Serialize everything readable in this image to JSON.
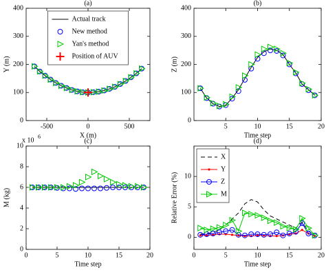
{
  "chart_data": [
    {
      "type": "line",
      "title": "(a)",
      "x_label": "X (m)",
      "y_label": "Y (m)",
      "x": [
        -650,
        -585,
        -520,
        -455,
        -390,
        -325,
        -260,
        -195,
        -130,
        -65,
        0,
        65,
        130,
        195,
        260,
        325,
        390,
        455,
        520,
        585,
        650
      ],
      "xlim": [
        -750,
        750
      ],
      "xticks": [
        -500,
        0,
        500
      ],
      "ylim": [
        0,
        400
      ],
      "yticks": [
        0,
        100,
        200,
        300,
        400
      ],
      "legend": "upper center",
      "series": [
        {
          "name": "Actual track",
          "color": "#000000",
          "line": "solid",
          "marker": "none",
          "values": [
            193,
            175,
            160,
            146,
            134,
            124,
            116,
            109,
            104,
            101,
            100,
            101,
            103,
            107,
            113,
            120,
            130,
            141,
            154,
            168,
            185
          ]
        },
        {
          "name": "New method",
          "color": "#0000ff",
          "line": "none",
          "marker": "circle",
          "values": [
            193,
            175,
            160,
            146,
            134,
            124,
            116,
            109,
            104,
            101,
            100,
            101,
            103,
            107,
            113,
            120,
            130,
            141,
            154,
            168,
            185
          ]
        },
        {
          "name": "Yan's method",
          "color": "#00cc00",
          "line": "none",
          "marker": "triangle",
          "values": [
            193,
            175,
            160,
            146,
            134,
            124,
            116,
            109,
            104,
            101,
            100,
            101,
            103,
            107,
            113,
            120,
            130,
            141,
            154,
            168,
            185
          ]
        },
        {
          "name": "Position of AUV",
          "color": "#ff0000",
          "line": "none",
          "marker": "plus",
          "values": [
            null,
            null,
            null,
            null,
            null,
            null,
            null,
            null,
            null,
            null,
            100,
            null,
            null,
            null,
            null,
            null,
            null,
            null,
            null,
            null,
            null
          ]
        }
      ]
    },
    {
      "type": "line",
      "title": "(b)",
      "x_label": "Time step",
      "y_label": "Z (m)",
      "x": [
        1,
        2,
        3,
        4,
        5,
        6,
        7,
        8,
        9,
        10,
        11,
        12,
        13,
        14,
        15,
        16,
        17,
        18,
        19
      ],
      "xlim": [
        0,
        20
      ],
      "xticks": [
        5,
        10,
        15,
        20
      ],
      "ylim": [
        0,
        400
      ],
      "yticks": [
        0,
        100,
        200,
        300,
        400
      ],
      "series": [
        {
          "name": "Actual track",
          "color": "#000000",
          "line": "solid",
          "marker": "none",
          "values": [
            115,
            80,
            60,
            50,
            55,
            80,
            110,
            150,
            190,
            225,
            245,
            255,
            250,
            235,
            200,
            170,
            130,
            110,
            90
          ]
        },
        {
          "name": "New method",
          "color": "#0000ff",
          "line": "none",
          "marker": "circle",
          "values": [
            115,
            80,
            60,
            50,
            55,
            78,
            105,
            145,
            185,
            220,
            240,
            250,
            248,
            232,
            200,
            168,
            130,
            108,
            90
          ]
        },
        {
          "name": "Yan's method",
          "color": "#00cc00",
          "line": "none",
          "marker": "triangle",
          "values": [
            115,
            82,
            62,
            52,
            58,
            85,
            118,
            160,
            200,
            235,
            255,
            262,
            255,
            240,
            205,
            172,
            133,
            112,
            90
          ]
        }
      ]
    },
    {
      "type": "line",
      "title": "(c)",
      "x_label": "Time step",
      "y_label": "M (kg)",
      "y_exponent_base": "x 10",
      "y_exponent": "6",
      "x": [
        1,
        2,
        3,
        4,
        5,
        6,
        7,
        8,
        9,
        10,
        11,
        12,
        13,
        14,
        15,
        16,
        17,
        18,
        19
      ],
      "xlim": [
        0,
        20
      ],
      "xticks": [
        0,
        5,
        10,
        15,
        20
      ],
      "ylim": [
        0,
        10
      ],
      "yticks": [
        0,
        2,
        4,
        6,
        8,
        10
      ],
      "series": [
        {
          "name": "Actual track",
          "color": "#000000",
          "line": "solid",
          "marker": "none",
          "values": [
            6,
            6,
            6,
            6,
            6,
            6,
            6,
            6,
            6,
            6,
            6,
            6,
            6,
            6,
            6,
            6,
            6,
            6,
            6
          ]
        },
        {
          "name": "New method",
          "color": "#0000ff",
          "line": "none",
          "marker": "circle",
          "values": [
            6,
            6,
            6,
            6,
            5.95,
            5.9,
            5.9,
            5.85,
            5.9,
            5.9,
            5.9,
            5.9,
            5.95,
            6,
            6,
            6,
            6,
            6,
            6
          ]
        },
        {
          "name": "Yan's method",
          "color": "#00cc00",
          "line": "none",
          "marker": "triangle",
          "values": [
            6,
            6,
            6,
            6,
            6,
            6,
            6.1,
            6.2,
            6.5,
            7,
            7.5,
            7.1,
            6.8,
            6.5,
            6.3,
            6.2,
            6.1,
            6.1,
            6
          ]
        }
      ]
    },
    {
      "type": "line",
      "title": "(d)",
      "x_label": "Time step",
      "y_label": "Relative Error (%)",
      "x": [
        1,
        2,
        3,
        4,
        5,
        6,
        7,
        8,
        9,
        10,
        11,
        12,
        13,
        14,
        15,
        16,
        17,
        18,
        19
      ],
      "xlim": [
        0,
        20
      ],
      "xticks": [
        0,
        5,
        10,
        15,
        20
      ],
      "ylim": [
        -2,
        15
      ],
      "yticks": [
        0,
        5,
        10
      ],
      "legend": "upper left",
      "series": [
        {
          "name": "X",
          "color": "#000000",
          "line": "dashed",
          "marker": "none",
          "values": [
            0.5,
            0.6,
            0.8,
            1.2,
            2,
            3,
            4,
            5.5,
            6.2,
            5.8,
            4.5,
            3.5,
            3,
            2.5,
            2,
            1.5,
            2.5,
            1,
            0.3
          ]
        },
        {
          "name": "Y",
          "color": "#ff0000",
          "line": "solid",
          "marker": "dot",
          "values": [
            0.3,
            0.3,
            0.4,
            0.5,
            0.5,
            0.4,
            0.3,
            0.2,
            0.2,
            0.3,
            0.3,
            0.2,
            0.2,
            0.3,
            0.5,
            0.6,
            1.2,
            0.6,
            0.2
          ]
        },
        {
          "name": "Z",
          "color": "#0000ff",
          "line": "solid",
          "marker": "circle",
          "values": [
            0.4,
            0.5,
            0.6,
            0.8,
            1,
            1.2,
            0.4,
            0.3,
            0.5,
            0.5,
            0.4,
            0.5,
            0.8,
            0.3,
            0.6,
            0.9,
            2.3,
            0.6,
            0.3
          ]
        },
        {
          "name": "M",
          "color": "#00cc00",
          "line": "solid",
          "marker": "triangle",
          "values": [
            1.5,
            1.2,
            1.4,
            1.6,
            2,
            2.8,
            1,
            4,
            3.8,
            3.6,
            3.2,
            2.7,
            2.4,
            1.8,
            1.5,
            1.3,
            3.1,
            1.5,
            0.3
          ]
        }
      ]
    }
  ]
}
